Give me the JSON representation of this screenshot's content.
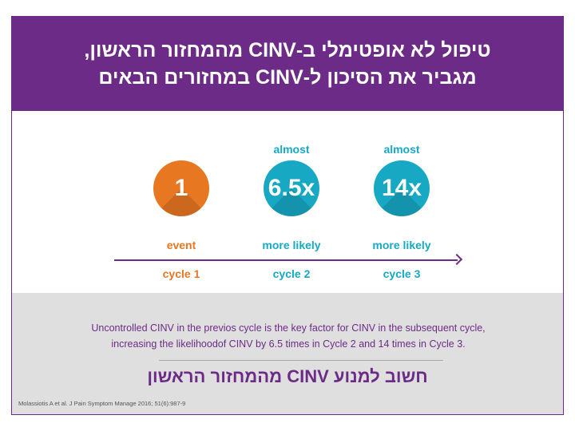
{
  "header": {
    "line1": "טיפול לא אופטימלי ב-CINV מהמחזור הראשון,",
    "line2": "מגביר את הסיכון ל-CINV במחזורים הבאים"
  },
  "cycles": [
    {
      "prefix": "",
      "value": "1",
      "suffix": "event",
      "cycle": "cycle 1",
      "color": "#e87722"
    },
    {
      "prefix": "almost",
      "value": "6.5x",
      "suffix": "more likely",
      "cycle": "cycle 2",
      "color": "#17a9c4"
    },
    {
      "prefix": "almost",
      "value": "14x",
      "suffix": "more likely",
      "cycle": "cycle 3",
      "color": "#17a9c4"
    }
  ],
  "summary": {
    "line1": "Uncontrolled CINV in the previos cycle is the key factor for CINV in the subsequent cycle,",
    "line2": "increasing the likelihoodof CINV by 6.5 times in Cycle 2 and 14 times in Cycle 3."
  },
  "note": "חשוב למנוע CINV מהמחזור הראשון",
  "citation": "Molassiotis A et al. J Pain Symptom Manage 2016; 51(6):987-9",
  "colors": {
    "purple": "#6b2b86",
    "orange": "#e87722",
    "teal": "#17a9c4",
    "gray": "#e0dfdf"
  }
}
